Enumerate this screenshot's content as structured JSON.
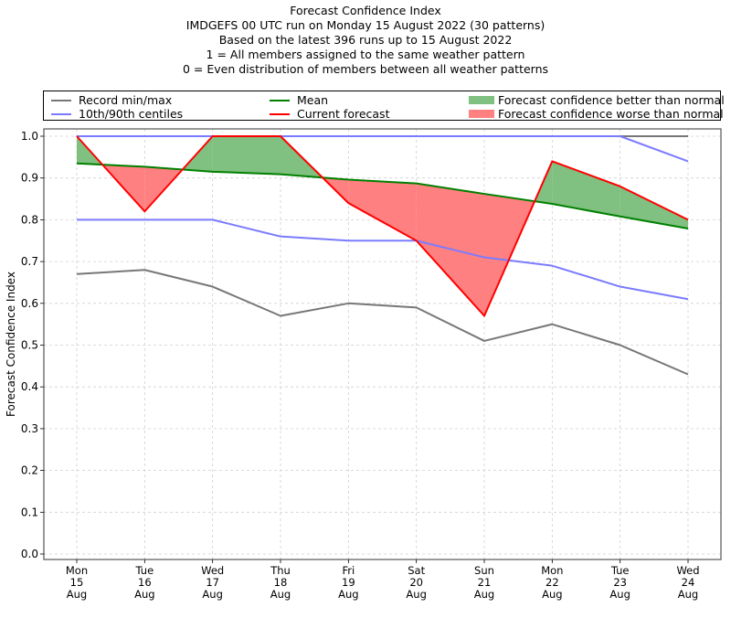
{
  "chart_data": {
    "type": "line",
    "title": "Forecast Confidence Index",
    "subtitle_lines": [
      "IMDGEFS 00 UTC run on Monday 15 August 2022 (30 patterns)",
      "Based on the latest 396 runs up to 15 August 2022",
      "1 = All members assigned to the same weather pattern",
      "0 = Even distribution of members between all weather patterns"
    ],
    "xlabel": "",
    "ylabel": "Forecast Confidence Index",
    "ylim": [
      0.0,
      1.0
    ],
    "yticks": [
      "0.0",
      "0.1",
      "0.2",
      "0.3",
      "0.4",
      "0.5",
      "0.6",
      "0.7",
      "0.8",
      "0.9",
      "1.0"
    ],
    "ytick_values": [
      0.0,
      0.1,
      0.2,
      0.3,
      0.4,
      0.5,
      0.6,
      0.7,
      0.8,
      0.9,
      1.0
    ],
    "grid": true,
    "legend_position": "top",
    "categories": [
      {
        "day": "Mon",
        "date": "15",
        "month": "Aug"
      },
      {
        "day": "Tue",
        "date": "16",
        "month": "Aug"
      },
      {
        "day": "Wed",
        "date": "17",
        "month": "Aug"
      },
      {
        "day": "Thu",
        "date": "18",
        "month": "Aug"
      },
      {
        "day": "Fri",
        "date": "19",
        "month": "Aug"
      },
      {
        "day": "Sat",
        "date": "20",
        "month": "Aug"
      },
      {
        "day": "Sun",
        "date": "21",
        "month": "Aug"
      },
      {
        "day": "Mon",
        "date": "22",
        "month": "Aug"
      },
      {
        "day": "Tue",
        "date": "23",
        "month": "Aug"
      },
      {
        "day": "Wed",
        "date": "24",
        "month": "Aug"
      }
    ],
    "series": [
      {
        "name": "Record min",
        "legend": "Record min/max",
        "color": "#777777",
        "values": [
          0.67,
          0.68,
          0.64,
          0.57,
          0.6,
          0.59,
          0.51,
          0.55,
          0.5,
          0.43
        ]
      },
      {
        "name": "Record max",
        "legend": "Record min/max",
        "color": "#777777",
        "values": [
          1.0,
          1.0,
          1.0,
          1.0,
          1.0,
          1.0,
          1.0,
          1.0,
          1.0,
          1.0
        ]
      },
      {
        "name": "10th centile",
        "legend": "10th/90th centiles",
        "color": "#7b7bff",
        "values": [
          0.8,
          0.8,
          0.8,
          0.76,
          0.75,
          0.75,
          0.71,
          0.69,
          0.64,
          0.61
        ]
      },
      {
        "name": "90th centile",
        "legend": "10th/90th centiles",
        "color": "#7b7bff",
        "values": [
          1.0,
          1.0,
          1.0,
          1.0,
          1.0,
          1.0,
          1.0,
          1.0,
          1.0,
          0.94
        ]
      },
      {
        "name": "Mean",
        "legend": "Mean",
        "color": "#008000",
        "values": [
          0.935,
          0.927,
          0.915,
          0.909,
          0.896,
          0.887,
          0.862,
          0.838,
          0.808,
          0.779
        ]
      },
      {
        "name": "Current forecast",
        "legend": "Current forecast",
        "color": "#ff0000",
        "values": [
          1.0,
          0.82,
          1.0,
          1.0,
          0.84,
          0.75,
          0.57,
          0.94,
          0.88,
          0.8
        ]
      }
    ],
    "fills": [
      {
        "name": "Forecast confidence better than normal",
        "color": "#80c080",
        "between": [
          "Current forecast",
          "Mean"
        ],
        "where": "current > mean"
      },
      {
        "name": "Forecast confidence worse than normal",
        "color": "#ff8080",
        "between": [
          "Current forecast",
          "Mean"
        ],
        "where": "current < mean"
      }
    ],
    "legend": [
      {
        "label": "Record min/max",
        "kind": "line",
        "color": "#777777"
      },
      {
        "label": "10th/90th centiles",
        "kind": "line",
        "color": "#7b7bff"
      },
      {
        "label": "Mean",
        "kind": "line",
        "color": "#008000"
      },
      {
        "label": "Current forecast",
        "kind": "line",
        "color": "#ff0000"
      },
      {
        "label": "Forecast confidence better than normal",
        "kind": "patch",
        "color": "#80c080"
      },
      {
        "label": "Forecast confidence worse than normal",
        "kind": "patch",
        "color": "#ff8080"
      }
    ]
  }
}
